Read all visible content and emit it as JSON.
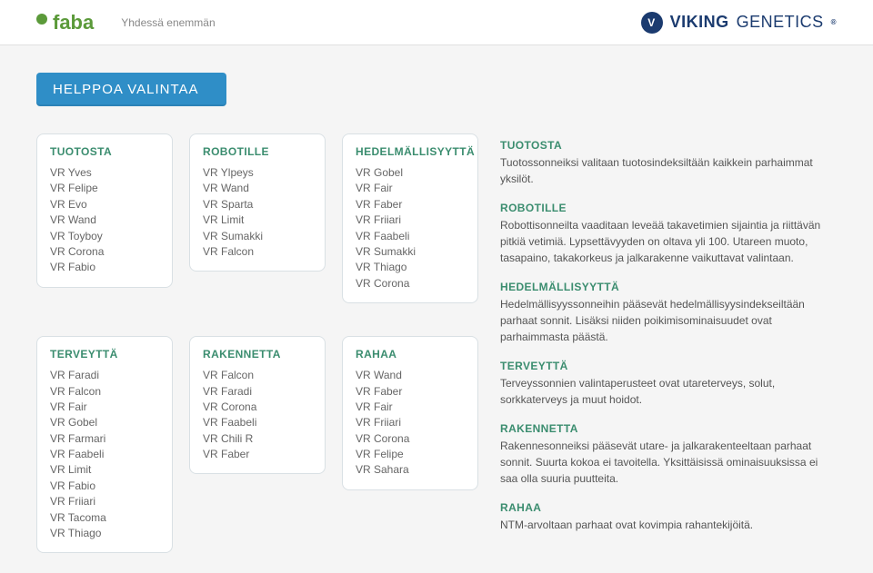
{
  "header": {
    "faba_name": "faba",
    "tagline": "Yhdessä enemmän",
    "viking_bold": "VIKING",
    "viking_thin": "GENETICS",
    "viking_badge": "V",
    "viking_mark": "®"
  },
  "banner": "HELPPOA VALINTAA",
  "cards": {
    "tuotosta": {
      "title": "TUOTOSTA",
      "items": [
        "VR Yves",
        "VR Felipe",
        "VR Evo",
        "VR Wand",
        "VR Toyboy",
        "VR Corona",
        "VR Fabio"
      ]
    },
    "robotille": {
      "title": "ROBOTILLE",
      "items": [
        "VR Ylpeys",
        "VR Wand",
        "VR Sparta",
        "VR Limit",
        "VR Sumakki",
        "VR Falcon"
      ]
    },
    "hedelm": {
      "title": "HEDELMÄLLISYYTTÄ",
      "items": [
        "VR Gobel",
        "VR Fair",
        "VR Faber",
        "VR Friiari",
        "VR Faabeli",
        "VR Sumakki",
        "VR Thiago",
        "VR Corona"
      ]
    },
    "terveytta": {
      "title": "TERVEYTTÄ",
      "items": [
        "VR Faradi",
        "VR Falcon",
        "VR Fair",
        "VR Gobel",
        "VR Farmari",
        "VR Faabeli",
        "VR Limit",
        "VR Fabio",
        "VR Friiari",
        "VR Tacoma",
        "VR Thiago"
      ]
    },
    "rakennetta": {
      "title": "RAKENNETTA",
      "items": [
        "VR Falcon",
        "VR Faradi",
        "VR Corona",
        "VR Faabeli",
        "VR Chili R",
        "VR Faber"
      ]
    },
    "rahaa": {
      "title": "RAHAA",
      "items": [
        "VR Wand",
        "VR Faber",
        "VR Fair",
        "VR Friiari",
        "VR Corona",
        "VR Felipe",
        "VR Sahara"
      ]
    }
  },
  "descriptions": {
    "tuotosta": {
      "title": "TUOTOSTA",
      "text": "Tuotossonneiksi valitaan tuotosindeksiltään kaikkein parhaimmat yksilöt."
    },
    "robotille": {
      "title": "ROBOTILLE",
      "text": "Robottisonneilta vaaditaan leveää takavetimien sijaintia ja riittävän pitkiä vetimiä. Lypsettävyyden on oltava yli 100. Utareen muoto, tasapaino, takakorkeus ja jalkarakenne vaikuttavat valintaan."
    },
    "hedelm": {
      "title": "HEDELMÄLLISYYTTÄ",
      "text": "Hedelmällisyyssonneihin pääsevät hedelmällisyysindekseiltään parhaat sonnit. Lisäksi niiden poikimisominaisuudet ovat parhaimmasta päästä."
    },
    "terveytta": {
      "title": "TERVEYTTÄ",
      "text": "Terveyssonnien valintaperusteet ovat utareterveys, solut, sorkkaterveys ja muut hoidot."
    },
    "rakennetta": {
      "title": "RAKENNETTA",
      "text": "Rakennesonneiksi pääsevät utare- ja jalkarakenteeltaan parhaat sonnit. Suurta kokoa ei tavoitella. Yksittäisissä ominaisuuksissa ei saa olla suuria puutteita."
    },
    "rahaa": {
      "title": "RAHAA",
      "text": "NTM-arvoltaan parhaat ovat kovimpia rahantekijöitä."
    }
  }
}
